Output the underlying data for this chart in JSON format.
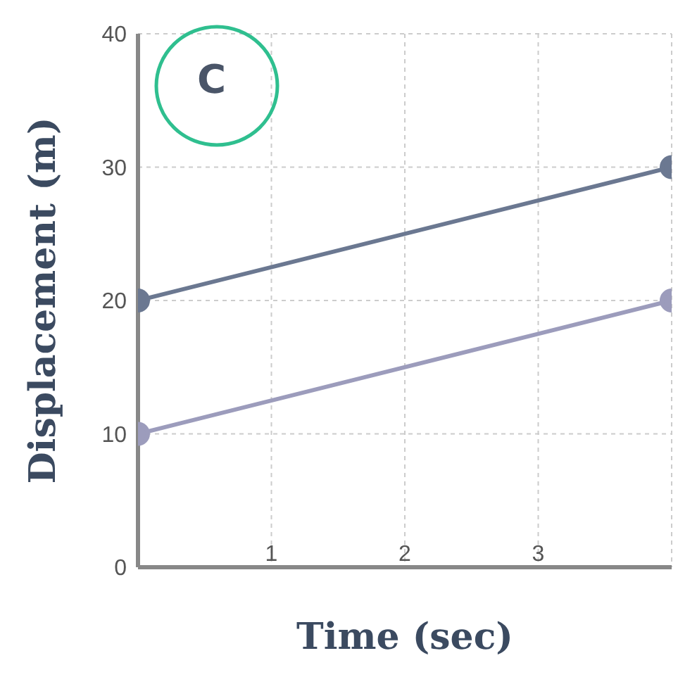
{
  "chart_data": {
    "type": "line",
    "xlabel": "Time (sec)",
    "ylabel": "Displacement (m)",
    "annotations": [
      "C"
    ],
    "x": [
      0,
      4
    ],
    "series": [
      {
        "color": "#6b7891",
        "values": [
          20,
          30
        ]
      },
      {
        "color": "#9c9cbc",
        "values": [
          10,
          20
        ]
      }
    ],
    "xlim": [
      0,
      4
    ],
    "xticks": [
      {
        "value": 0,
        "label": null
      },
      1,
      2,
      3,
      {
        "value": 4,
        "label": null
      }
    ],
    "ylim": [
      0,
      40
    ],
    "yticks": [
      0,
      10,
      20,
      30,
      40
    ],
    "grid": true,
    "marker": "circle",
    "line_style": "solid"
  }
}
